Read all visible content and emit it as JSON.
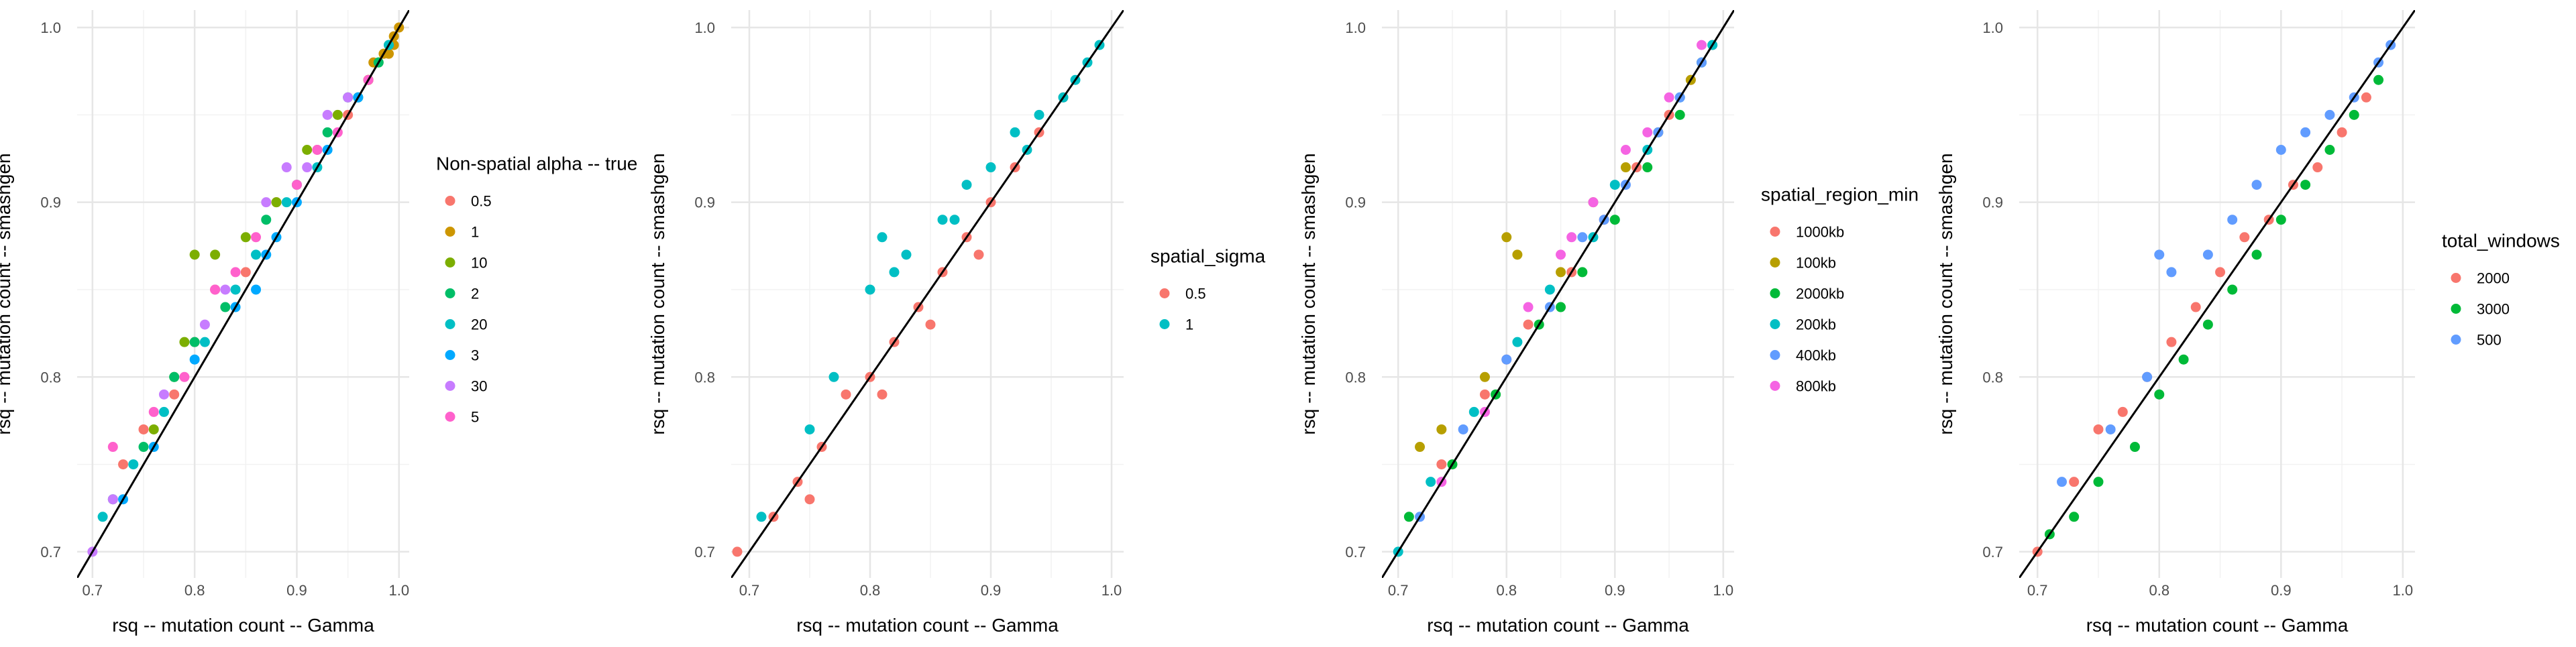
{
  "chart_data": [
    {
      "type": "scatter",
      "xlabel": "rsq -- mutation count -- Gamma",
      "ylabel": "rsq -- mutation count -- smashgen",
      "xlim": [
        0.685,
        1.01
      ],
      "ylim": [
        0.685,
        1.01
      ],
      "x_ticks": [
        0.7,
        0.8,
        0.9,
        1.0
      ],
      "y_ticks": [
        0.7,
        0.8,
        0.9,
        1.0
      ],
      "x_tick_labels": [
        "0.7",
        "0.8",
        "0.9",
        "1.0"
      ],
      "y_tick_labels": [
        "0.7",
        "0.8",
        "0.9",
        "1.0"
      ],
      "reference_line": "y = x",
      "grid": true,
      "legend_placement": "right",
      "legend_title": "Non-spatial alpha -- true",
      "series": [
        {
          "name": "0.5",
          "color": "#F8766D",
          "points": [
            [
              0.73,
              0.75
            ],
            [
              0.78,
              0.79
            ],
            [
              0.82,
              0.85
            ],
            [
              0.85,
              0.86
            ],
            [
              0.88,
              0.9
            ],
            [
              0.92,
              0.93
            ],
            [
              0.95,
              0.95
            ],
            [
              0.97,
              0.97
            ],
            [
              0.75,
              0.77
            ],
            [
              0.8,
              0.82
            ]
          ]
        },
        {
          "name": "1",
          "color": "#CD9600",
          "points": [
            [
              0.96,
              0.96
            ],
            [
              0.97,
              0.97
            ],
            [
              0.98,
              0.98
            ],
            [
              0.985,
              0.985
            ],
            [
              0.99,
              0.99
            ],
            [
              0.995,
              0.995
            ],
            [
              1.0,
              1.0
            ],
            [
              0.975,
              0.98
            ],
            [
              0.99,
              0.985
            ],
            [
              0.995,
              0.99
            ]
          ]
        },
        {
          "name": "10",
          "color": "#7CAE00",
          "points": [
            [
              0.76,
              0.77
            ],
            [
              0.79,
              0.82
            ],
            [
              0.8,
              0.87
            ],
            [
              0.82,
              0.87
            ],
            [
              0.85,
              0.88
            ],
            [
              0.88,
              0.9
            ],
            [
              0.91,
              0.93
            ],
            [
              0.94,
              0.95
            ],
            [
              0.97,
              0.97
            ],
            [
              0.78,
              0.8
            ]
          ]
        },
        {
          "name": "2",
          "color": "#00BE67",
          "points": [
            [
              0.72,
              0.73
            ],
            [
              0.75,
              0.76
            ],
            [
              0.78,
              0.8
            ],
            [
              0.83,
              0.84
            ],
            [
              0.87,
              0.89
            ],
            [
              0.9,
              0.91
            ],
            [
              0.93,
              0.94
            ],
            [
              0.95,
              0.96
            ],
            [
              0.98,
              0.98
            ],
            [
              0.8,
              0.82
            ]
          ]
        },
        {
          "name": "20",
          "color": "#00BFC4",
          "points": [
            [
              0.71,
              0.72
            ],
            [
              0.74,
              0.75
            ],
            [
              0.77,
              0.78
            ],
            [
              0.81,
              0.82
            ],
            [
              0.84,
              0.85
            ],
            [
              0.89,
              0.9
            ],
            [
              0.92,
              0.92
            ],
            [
              0.96,
              0.96
            ],
            [
              0.99,
              0.99
            ],
            [
              0.86,
              0.87
            ]
          ]
        },
        {
          "name": "3",
          "color": "#00A9FF",
          "points": [
            [
              0.73,
              0.73
            ],
            [
              0.76,
              0.76
            ],
            [
              0.8,
              0.81
            ],
            [
              0.84,
              0.84
            ],
            [
              0.86,
              0.85
            ],
            [
              0.87,
              0.87
            ],
            [
              0.9,
              0.9
            ],
            [
              0.93,
              0.93
            ],
            [
              0.96,
              0.96
            ],
            [
              0.88,
              0.88
            ]
          ]
        },
        {
          "name": "30",
          "color": "#C77CFF",
          "points": [
            [
              0.7,
              0.7
            ],
            [
              0.72,
              0.73
            ],
            [
              0.77,
              0.79
            ],
            [
              0.81,
              0.83
            ],
            [
              0.83,
              0.85
            ],
            [
              0.87,
              0.9
            ],
            [
              0.89,
              0.92
            ],
            [
              0.93,
              0.95
            ],
            [
              0.95,
              0.96
            ],
            [
              0.91,
              0.92
            ]
          ]
        },
        {
          "name": "5",
          "color": "#FF61CC",
          "points": [
            [
              0.72,
              0.76
            ],
            [
              0.76,
              0.78
            ],
            [
              0.79,
              0.8
            ],
            [
              0.82,
              0.85
            ],
            [
              0.86,
              0.88
            ],
            [
              0.9,
              0.91
            ],
            [
              0.92,
              0.93
            ],
            [
              0.94,
              0.94
            ],
            [
              0.97,
              0.97
            ],
            [
              0.84,
              0.86
            ]
          ]
        }
      ]
    },
    {
      "type": "scatter",
      "xlabel": "rsq -- mutation count -- Gamma",
      "ylabel": "rsq -- mutation count -- smashgen",
      "xlim": [
        0.685,
        1.01
      ],
      "ylim": [
        0.685,
        1.01
      ],
      "x_ticks": [
        0.7,
        0.8,
        0.9,
        1.0
      ],
      "y_ticks": [
        0.7,
        0.8,
        0.9,
        1.0
      ],
      "x_tick_labels": [
        "0.7",
        "0.8",
        "0.9",
        "1.0"
      ],
      "y_tick_labels": [
        "0.7",
        "0.8",
        "0.9",
        "1.0"
      ],
      "reference_line": "y = x",
      "grid": true,
      "legend_placement": "right",
      "legend_title": "spatial_sigma",
      "series": [
        {
          "name": "0.5",
          "color": "#F8766D",
          "points": [
            [
              0.69,
              0.7
            ],
            [
              0.72,
              0.72
            ],
            [
              0.74,
              0.74
            ],
            [
              0.76,
              0.76
            ],
            [
              0.78,
              0.79
            ],
            [
              0.8,
              0.8
            ],
            [
              0.82,
              0.82
            ],
            [
              0.84,
              0.84
            ],
            [
              0.86,
              0.86
            ],
            [
              0.88,
              0.88
            ],
            [
              0.9,
              0.9
            ],
            [
              0.92,
              0.92
            ],
            [
              0.94,
              0.94
            ],
            [
              0.96,
              0.96
            ],
            [
              0.75,
              0.73
            ],
            [
              0.81,
              0.79
            ],
            [
              0.85,
              0.83
            ],
            [
              0.89,
              0.87
            ]
          ]
        },
        {
          "name": "1",
          "color": "#00BFC4",
          "points": [
            [
              0.71,
              0.72
            ],
            [
              0.75,
              0.77
            ],
            [
              0.77,
              0.8
            ],
            [
              0.8,
              0.85
            ],
            [
              0.81,
              0.88
            ],
            [
              0.83,
              0.87
            ],
            [
              0.86,
              0.89
            ],
            [
              0.88,
              0.91
            ],
            [
              0.9,
              0.92
            ],
            [
              0.92,
              0.94
            ],
            [
              0.94,
              0.95
            ],
            [
              0.96,
              0.96
            ],
            [
              0.98,
              0.98
            ],
            [
              0.99,
              0.99
            ],
            [
              0.82,
              0.86
            ],
            [
              0.87,
              0.89
            ],
            [
              0.93,
              0.93
            ],
            [
              0.97,
              0.97
            ]
          ]
        }
      ]
    },
    {
      "type": "scatter",
      "xlabel": "rsq -- mutation count -- Gamma",
      "ylabel": "rsq -- mutation count -- smashgen",
      "xlim": [
        0.685,
        1.01
      ],
      "ylim": [
        0.685,
        1.01
      ],
      "x_ticks": [
        0.7,
        0.8,
        0.9,
        1.0
      ],
      "y_ticks": [
        0.7,
        0.8,
        0.9,
        1.0
      ],
      "x_tick_labels": [
        "0.7",
        "0.8",
        "0.9",
        "1.0"
      ],
      "y_tick_labels": [
        "0.7",
        "0.8",
        "0.9",
        "1.0"
      ],
      "reference_line": "y = x",
      "grid": true,
      "legend_placement": "right",
      "legend_title": "spatial_region_min",
      "series": [
        {
          "name": "1000kb",
          "color": "#F8766D",
          "points": [
            [
              0.74,
              0.75
            ],
            [
              0.78,
              0.79
            ],
            [
              0.82,
              0.83
            ],
            [
              0.86,
              0.86
            ],
            [
              0.89,
              0.89
            ],
            [
              0.92,
              0.92
            ],
            [
              0.95,
              0.95
            ],
            [
              0.97,
              0.97
            ],
            [
              0.99,
              0.99
            ],
            [
              0.8,
              0.81
            ]
          ]
        },
        {
          "name": "100kb",
          "color": "#B79F00",
          "points": [
            [
              0.72,
              0.76
            ],
            [
              0.74,
              0.77
            ],
            [
              0.78,
              0.8
            ],
            [
              0.8,
              0.88
            ],
            [
              0.81,
              0.87
            ],
            [
              0.85,
              0.86
            ],
            [
              0.88,
              0.9
            ],
            [
              0.91,
              0.92
            ],
            [
              0.94,
              0.94
            ],
            [
              0.97,
              0.97
            ]
          ]
        },
        {
          "name": "2000kb",
          "color": "#00BA38",
          "points": [
            [
              0.71,
              0.72
            ],
            [
              0.75,
              0.75
            ],
            [
              0.79,
              0.79
            ],
            [
              0.83,
              0.83
            ],
            [
              0.87,
              0.86
            ],
            [
              0.9,
              0.89
            ],
            [
              0.93,
              0.92
            ],
            [
              0.96,
              0.95
            ],
            [
              0.98,
              0.98
            ],
            [
              0.85,
              0.84
            ]
          ]
        },
        {
          "name": "200kb",
          "color": "#00BFC4",
          "points": [
            [
              0.7,
              0.7
            ],
            [
              0.73,
              0.74
            ],
            [
              0.77,
              0.78
            ],
            [
              0.81,
              0.82
            ],
            [
              0.84,
              0.85
            ],
            [
              0.88,
              0.88
            ],
            [
              0.9,
              0.91
            ],
            [
              0.93,
              0.93
            ],
            [
              0.96,
              0.96
            ],
            [
              0.99,
              0.99
            ]
          ]
        },
        {
          "name": "400kb",
          "color": "#619CFF",
          "points": [
            [
              0.72,
              0.72
            ],
            [
              0.76,
              0.77
            ],
            [
              0.8,
              0.81
            ],
            [
              0.84,
              0.84
            ],
            [
              0.87,
              0.88
            ],
            [
              0.91,
              0.91
            ],
            [
              0.94,
              0.94
            ],
            [
              0.96,
              0.96
            ],
            [
              0.98,
              0.98
            ],
            [
              0.89,
              0.89
            ]
          ]
        },
        {
          "name": "800kb",
          "color": "#F564E3",
          "points": [
            [
              0.74,
              0.74
            ],
            [
              0.78,
              0.78
            ],
            [
              0.82,
              0.84
            ],
            [
              0.85,
              0.87
            ],
            [
              0.88,
              0.9
            ],
            [
              0.91,
              0.93
            ],
            [
              0.93,
              0.94
            ],
            [
              0.95,
              0.96
            ],
            [
              0.98,
              0.99
            ],
            [
              0.86,
              0.88
            ]
          ]
        }
      ]
    },
    {
      "type": "scatter",
      "xlabel": "rsq -- mutation count -- Gamma",
      "ylabel": "rsq -- mutation count -- smashgen",
      "xlim": [
        0.685,
        1.01
      ],
      "ylim": [
        0.685,
        1.01
      ],
      "x_ticks": [
        0.7,
        0.8,
        0.9,
        1.0
      ],
      "y_ticks": [
        0.7,
        0.8,
        0.9,
        1.0
      ],
      "x_tick_labels": [
        "0.7",
        "0.8",
        "0.9",
        "1.0"
      ],
      "y_tick_labels": [
        "0.7",
        "0.8",
        "0.9",
        "1.0"
      ],
      "reference_line": "y = x",
      "grid": true,
      "legend_placement": "right",
      "legend_title": "total_windows",
      "series": [
        {
          "name": "2000",
          "color": "#F8766D",
          "points": [
            [
              0.7,
              0.7
            ],
            [
              0.73,
              0.74
            ],
            [
              0.75,
              0.77
            ],
            [
              0.77,
              0.78
            ],
            [
              0.79,
              0.8
            ],
            [
              0.81,
              0.82
            ],
            [
              0.83,
              0.84
            ],
            [
              0.85,
              0.86
            ],
            [
              0.87,
              0.88
            ],
            [
              0.89,
              0.89
            ],
            [
              0.91,
              0.91
            ],
            [
              0.93,
              0.92
            ],
            [
              0.95,
              0.94
            ],
            [
              0.97,
              0.96
            ]
          ]
        },
        {
          "name": "3000",
          "color": "#00BA38",
          "points": [
            [
              0.71,
              0.71
            ],
            [
              0.73,
              0.72
            ],
            [
              0.75,
              0.74
            ],
            [
              0.78,
              0.76
            ],
            [
              0.8,
              0.79
            ],
            [
              0.82,
              0.81
            ],
            [
              0.84,
              0.83
            ],
            [
              0.86,
              0.85
            ],
            [
              0.88,
              0.87
            ],
            [
              0.9,
              0.89
            ],
            [
              0.92,
              0.91
            ],
            [
              0.94,
              0.93
            ],
            [
              0.96,
              0.95
            ],
            [
              0.98,
              0.97
            ]
          ]
        },
        {
          "name": "500",
          "color": "#619CFF",
          "points": [
            [
              0.72,
              0.74
            ],
            [
              0.76,
              0.77
            ],
            [
              0.79,
              0.8
            ],
            [
              0.8,
              0.87
            ],
            [
              0.81,
              0.86
            ],
            [
              0.84,
              0.87
            ],
            [
              0.86,
              0.89
            ],
            [
              0.88,
              0.91
            ],
            [
              0.9,
              0.93
            ],
            [
              0.92,
              0.94
            ],
            [
              0.94,
              0.95
            ],
            [
              0.96,
              0.96
            ],
            [
              0.98,
              0.98
            ],
            [
              0.99,
              0.99
            ]
          ]
        }
      ]
    }
  ]
}
